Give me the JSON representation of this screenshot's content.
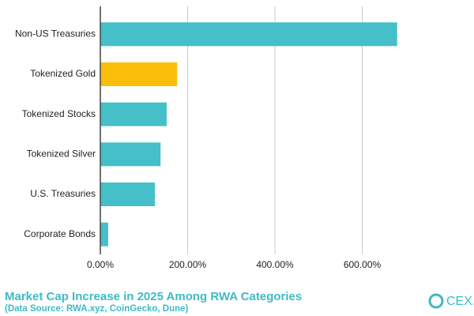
{
  "chart_data": {
    "type": "bar",
    "orientation": "horizontal",
    "title": "Market Cap Increase in 2025 Among RWA Categories",
    "subtitle": "(Data Source: RWA.xyz, CoinGecko, Dune)",
    "brand": "CEX.IO",
    "categories": [
      "Non-US Treasuries",
      "Tokenized Gold",
      "Tokenized Stocks",
      "Tokenized Silver",
      "U.S. Treasuries",
      "Corporate Bonds"
    ],
    "values": [
      680,
      176,
      152,
      138,
      125,
      18
    ],
    "colors": [
      "#45bfc8",
      "#fbbf0a",
      "#45bfc8",
      "#45bfc8",
      "#45bfc8",
      "#45bfc8"
    ],
    "xlim": [
      0,
      800
    ],
    "xticks": [
      {
        "value": 0,
        "label": "0.00%"
      },
      {
        "value": 200,
        "label": "200.00%"
      },
      {
        "value": 400,
        "label": "400.00%"
      },
      {
        "value": 600,
        "label": "600.00%"
      }
    ],
    "grid": true
  }
}
